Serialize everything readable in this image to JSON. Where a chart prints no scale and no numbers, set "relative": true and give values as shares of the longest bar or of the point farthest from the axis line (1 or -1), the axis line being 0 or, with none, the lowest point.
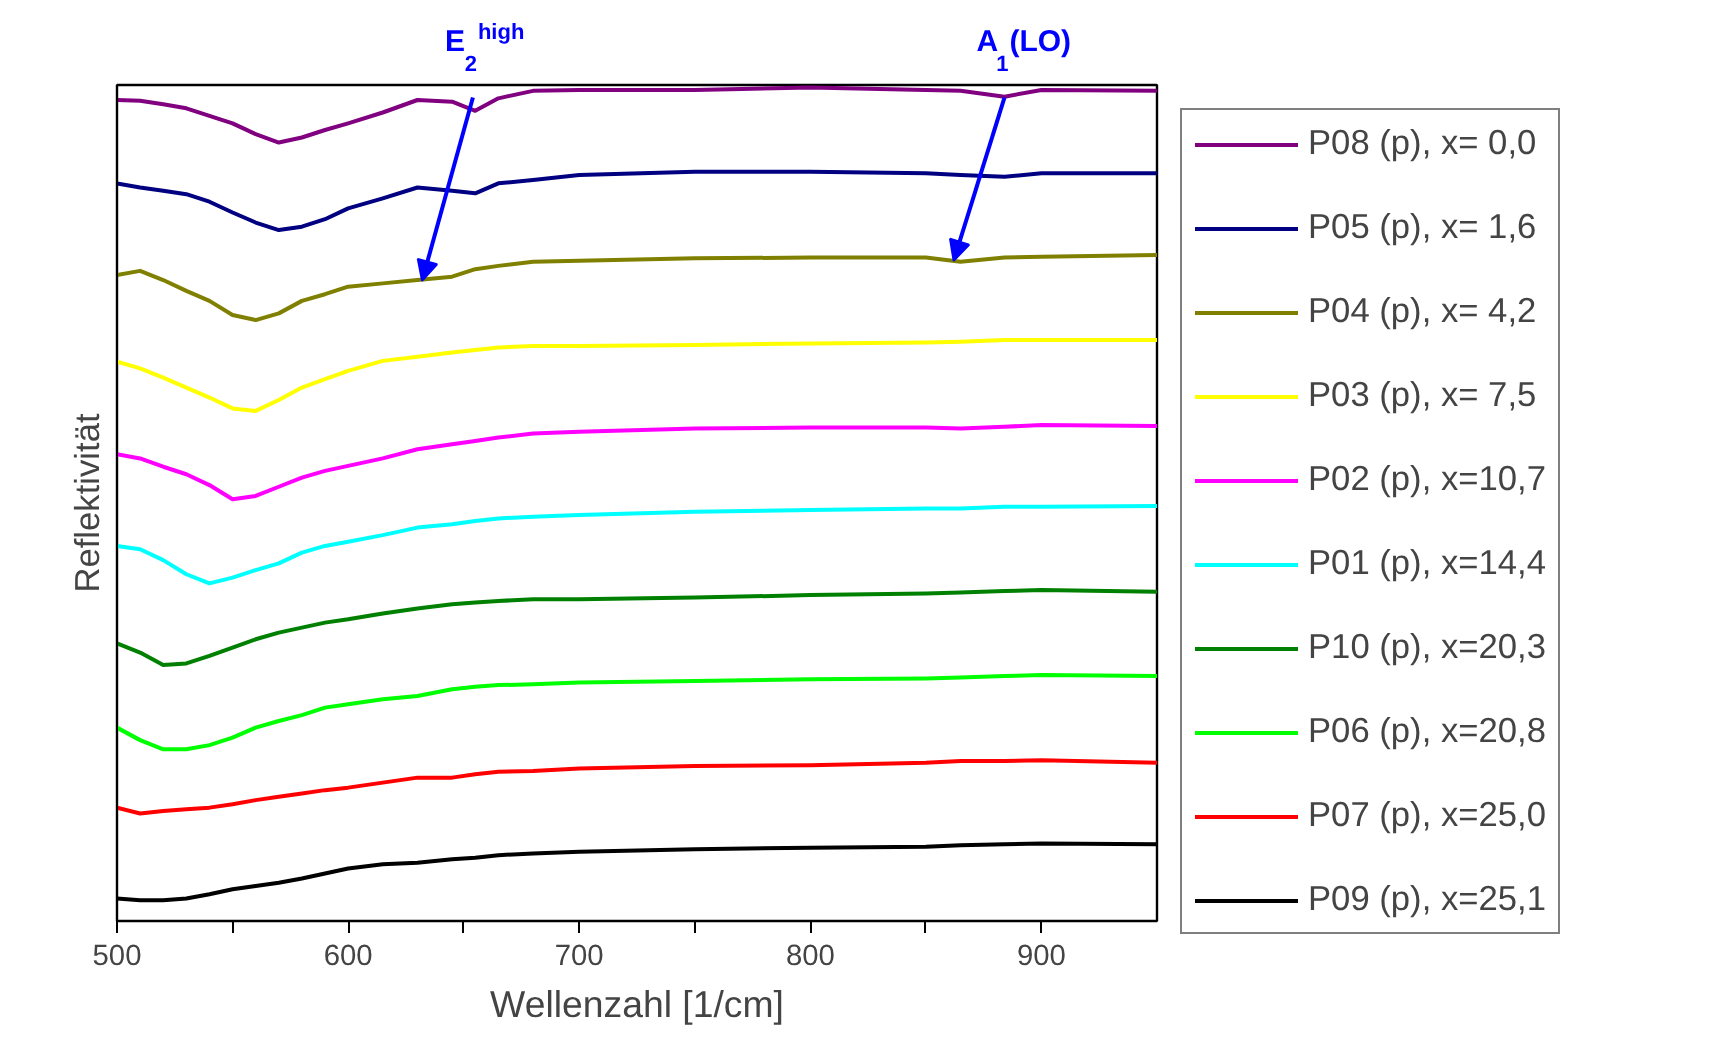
{
  "chart_data": {
    "type": "line",
    "relative": true,
    "xlabel": "Wellenzahl [1/cm]",
    "ylabel": "Reflektivität",
    "x": [
      500,
      510,
      520,
      530,
      540,
      550,
      560,
      570,
      580,
      590,
      600,
      615,
      630,
      645,
      655,
      665,
      680,
      700,
      750,
      800,
      850,
      865,
      884,
      900,
      950
    ],
    "xlim": [
      500,
      950
    ],
    "xticks": [
      500,
      {
        "value": 550,
        "label": null
      },
      600,
      {
        "value": 650,
        "label": null
      },
      700,
      {
        "value": 750,
        "label": null
      },
      800,
      {
        "value": 850,
        "label": null
      },
      900
    ],
    "legend": "right",
    "line_style": "solid",
    "marker": "none",
    "annotations": [
      {
        "text": "E$_{2}$$^{high}$",
        "x": 632,
        "y": 0.768
      },
      {
        "text": "A$_{1}$ (LO)",
        "x": 862,
        "y": 0.792
      }
    ],
    "series": [
      {
        "name": "P08 (p), x= 0,0",
        "color": "#800080",
        "values": [
          0.985,
          0.984,
          0.98,
          0.975,
          0.966,
          0.957,
          0.944,
          0.934,
          0.94,
          0.949,
          0.957,
          0.97,
          0.985,
          0.983,
          0.972,
          0.987,
          0.996,
          0.997,
          0.997,
          1.0,
          0.997,
          0.996,
          0.989,
          0.997,
          0.996
        ]
      },
      {
        "name": "P05 (p), x= 1,6",
        "color": "#000080",
        "values": [
          0.885,
          0.88,
          0.876,
          0.872,
          0.863,
          0.85,
          0.838,
          0.829,
          0.833,
          0.842,
          0.855,
          0.867,
          0.88,
          0.876,
          0.873,
          0.885,
          0.889,
          0.895,
          0.899,
          0.899,
          0.897,
          0.895,
          0.893,
          0.897,
          0.897
        ]
      },
      {
        "name": "P04 (p), x= 4,2",
        "color": "#808000",
        "values": [
          0.775,
          0.78,
          0.769,
          0.756,
          0.744,
          0.727,
          0.721,
          0.729,
          0.744,
          0.752,
          0.761,
          0.765,
          0.769,
          0.773,
          0.782,
          0.786,
          0.791,
          0.792,
          0.795,
          0.796,
          0.796,
          0.791,
          0.796,
          0.797,
          0.799
        ]
      },
      {
        "name": "P03 (p), x= 7,5",
        "color": "#ffff00",
        "values": [
          0.671,
          0.663,
          0.652,
          0.64,
          0.628,
          0.615,
          0.612,
          0.625,
          0.64,
          0.65,
          0.66,
          0.672,
          0.677,
          0.682,
          0.685,
          0.688,
          0.69,
          0.69,
          0.691,
          0.693,
          0.694,
          0.695,
          0.697,
          0.697,
          0.697
        ]
      },
      {
        "name": "P02 (p), x=10,7",
        "color": "#ff00ff",
        "values": [
          0.56,
          0.555,
          0.545,
          0.536,
          0.523,
          0.506,
          0.51,
          0.521,
          0.532,
          0.54,
          0.546,
          0.555,
          0.566,
          0.572,
          0.576,
          0.58,
          0.585,
          0.587,
          0.591,
          0.592,
          0.592,
          0.591,
          0.593,
          0.595,
          0.594
        ]
      },
      {
        "name": "P01 (p), x=14,4",
        "color": "#00ffff",
        "values": [
          0.45,
          0.446,
          0.433,
          0.416,
          0.405,
          0.412,
          0.421,
          0.429,
          0.442,
          0.45,
          0.455,
          0.463,
          0.472,
          0.476,
          0.48,
          0.483,
          0.485,
          0.487,
          0.491,
          0.493,
          0.495,
          0.495,
          0.497,
          0.497,
          0.498
        ]
      },
      {
        "name": "P10 (p), x=20,3",
        "color": "#008000",
        "values": [
          0.333,
          0.322,
          0.307,
          0.309,
          0.318,
          0.328,
          0.338,
          0.346,
          0.352,
          0.358,
          0.362,
          0.369,
          0.375,
          0.38,
          0.382,
          0.384,
          0.386,
          0.386,
          0.388,
          0.391,
          0.393,
          0.394,
          0.396,
          0.397,
          0.395
        ]
      },
      {
        "name": "P06 (p), x=20,8",
        "color": "#00ff00",
        "values": [
          0.232,
          0.217,
          0.206,
          0.206,
          0.211,
          0.22,
          0.232,
          0.24,
          0.247,
          0.256,
          0.26,
          0.266,
          0.27,
          0.278,
          0.281,
          0.283,
          0.284,
          0.286,
          0.288,
          0.29,
          0.291,
          0.292,
          0.294,
          0.295,
          0.294
        ]
      },
      {
        "name": "P07 (p), x=25,0",
        "color": "#ff0000",
        "values": [
          0.136,
          0.129,
          0.132,
          0.134,
          0.136,
          0.14,
          0.145,
          0.149,
          0.153,
          0.157,
          0.16,
          0.166,
          0.172,
          0.172,
          0.176,
          0.179,
          0.18,
          0.183,
          0.186,
          0.187,
          0.19,
          0.192,
          0.192,
          0.193,
          0.19
        ]
      },
      {
        "name": "P09 (p), x=25,1",
        "color": "#000000",
        "values": [
          0.027,
          0.025,
          0.025,
          0.027,
          0.032,
          0.038,
          0.042,
          0.046,
          0.051,
          0.057,
          0.063,
          0.068,
          0.07,
          0.074,
          0.076,
          0.079,
          0.081,
          0.083,
          0.086,
          0.088,
          0.089,
          0.091,
          0.092,
          0.093,
          0.092
        ]
      }
    ]
  }
}
